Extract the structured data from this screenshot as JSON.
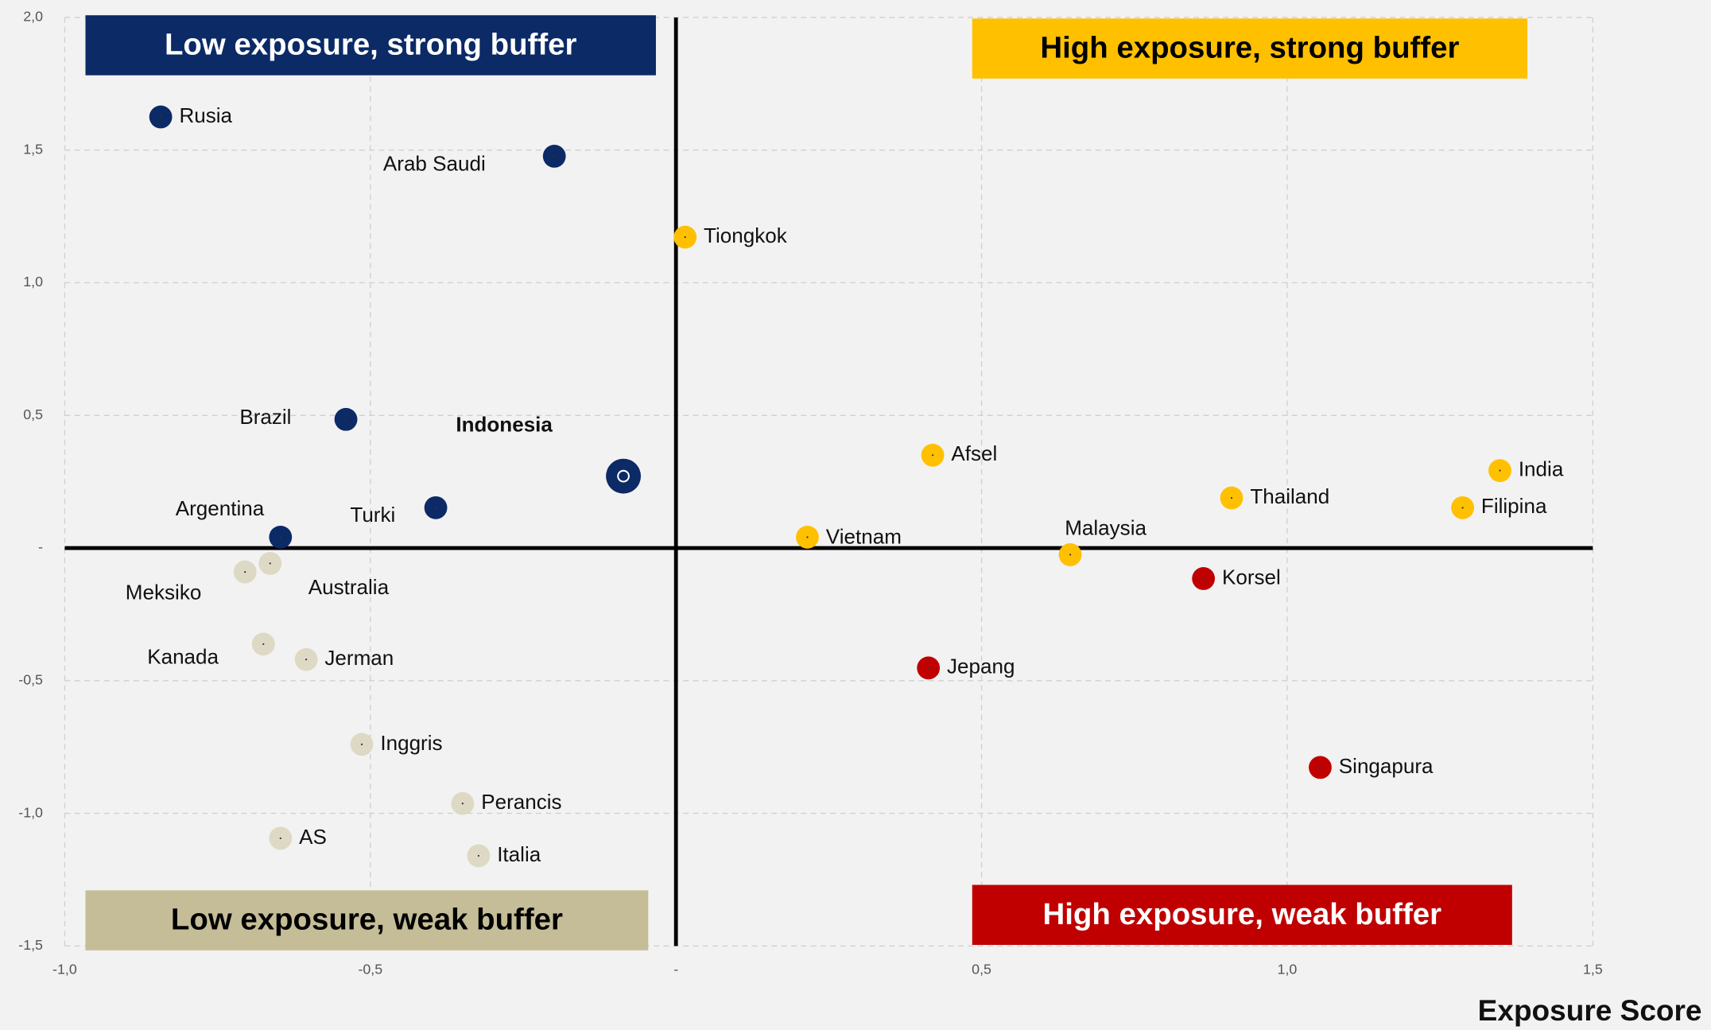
{
  "chart_data": {
    "type": "scatter",
    "x_label": "Exposure Score",
    "xlim": [
      -1.0,
      1.5
    ],
    "xticks": [
      {
        "value": -1.0,
        "label": "-1,0"
      },
      {
        "value": -0.5,
        "label": "-0,5"
      },
      {
        "value": 0,
        "label": "-"
      },
      {
        "value": 0.5,
        "label": "0,5"
      },
      {
        "value": 1.0,
        "label": "1,0"
      },
      {
        "value": 1.5,
        "label": "1,5"
      }
    ],
    "ylim": [
      -1.5,
      2.0
    ],
    "yticks": [
      {
        "value": 2.0,
        "label": "2,0"
      },
      {
        "value": 1.5,
        "label": "1,5"
      },
      {
        "value": 1.0,
        "label": "1,0"
      },
      {
        "value": 0.5,
        "label": "0,5"
      },
      {
        "value": 0,
        "label": "-"
      },
      {
        "value": -0.5,
        "label": "-0,5"
      },
      {
        "value": -1.0,
        "label": "-1,0"
      },
      {
        "value": -1.5,
        "label": "-1,5"
      }
    ],
    "grid": true,
    "quadrants": [
      {
        "label": "Low exposure, strong buffer",
        "color": "#0b2a66",
        "text_color": "#ffffff"
      },
      {
        "label": "High exposure, strong buffer",
        "color": "#ffc000",
        "text_color": "#000000"
      },
      {
        "label": "Low exposure, weak buffer",
        "color": "#c4bd97",
        "text_color": "#000000"
      },
      {
        "label": "High exposure, weak buffer",
        "color": "#c00000",
        "text_color": "#ffffff"
      }
    ],
    "points": [
      {
        "label": "Rusia",
        "x": -0.843,
        "y": 1.625,
        "color": "#0b2a66"
      },
      {
        "label": "Arab Saudi",
        "x": -0.199,
        "y": 1.477,
        "color": "#0b2a66"
      },
      {
        "label": "Tiongkok",
        "x": 0.015,
        "y": 1.172,
        "color": "#ffc000"
      },
      {
        "label": "Brazil",
        "x": -0.54,
        "y": 0.485,
        "color": "#0b2a66"
      },
      {
        "label": "Indonesia",
        "x": -0.086,
        "y": 0.271,
        "color": "#0b2a66"
      },
      {
        "label": "Turki",
        "x": -0.393,
        "y": 0.152,
        "color": "#0b2a66"
      },
      {
        "label": "Argentina",
        "x": -0.647,
        "y": 0.041,
        "color": "#0b2a66"
      },
      {
        "label": "Meksiko",
        "x": -0.705,
        "y": -0.09,
        "color": "#ddd9c4"
      },
      {
        "label": "Australia",
        "x": -0.664,
        "y": -0.058,
        "color": "#ddd9c4"
      },
      {
        "label": "Kanada",
        "x": -0.675,
        "y": -0.362,
        "color": "#ddd9c4"
      },
      {
        "label": "Jerman",
        "x": -0.605,
        "y": -0.42,
        "color": "#ddd9c4"
      },
      {
        "label": "Inggris",
        "x": -0.514,
        "y": -0.74,
        "color": "#ddd9c4"
      },
      {
        "label": "Perancis",
        "x": -0.349,
        "y": -0.963,
        "color": "#ddd9c4"
      },
      {
        "label": "AS",
        "x": -0.647,
        "y": -1.094,
        "color": "#ddd9c4"
      },
      {
        "label": "Italia",
        "x": -0.323,
        "y": -1.16,
        "color": "#ddd9c4"
      },
      {
        "label": "Afsel",
        "x": 0.42,
        "y": 0.35,
        "color": "#ffc000"
      },
      {
        "label": "Vietnam",
        "x": 0.215,
        "y": 0.041,
        "color": "#ffc000"
      },
      {
        "label": "Malaysia",
        "x": 0.645,
        "y": -0.025,
        "color": "#ffc000"
      },
      {
        "label": "Thailand",
        "x": 0.909,
        "y": 0.189,
        "color": "#ffc000"
      },
      {
        "label": "India",
        "x": 1.348,
        "y": 0.292,
        "color": "#ffc000"
      },
      {
        "label": "Filipina",
        "x": 1.287,
        "y": 0.152,
        "color": "#ffc000"
      },
      {
        "label": "Korsel",
        "x": 0.863,
        "y": -0.115,
        "color": "#c00000"
      },
      {
        "label": "Jepang",
        "x": 0.413,
        "y": -0.452,
        "color": "#c00000"
      },
      {
        "label": "Singapura",
        "x": 1.054,
        "y": -0.827,
        "color": "#c00000"
      }
    ]
  }
}
